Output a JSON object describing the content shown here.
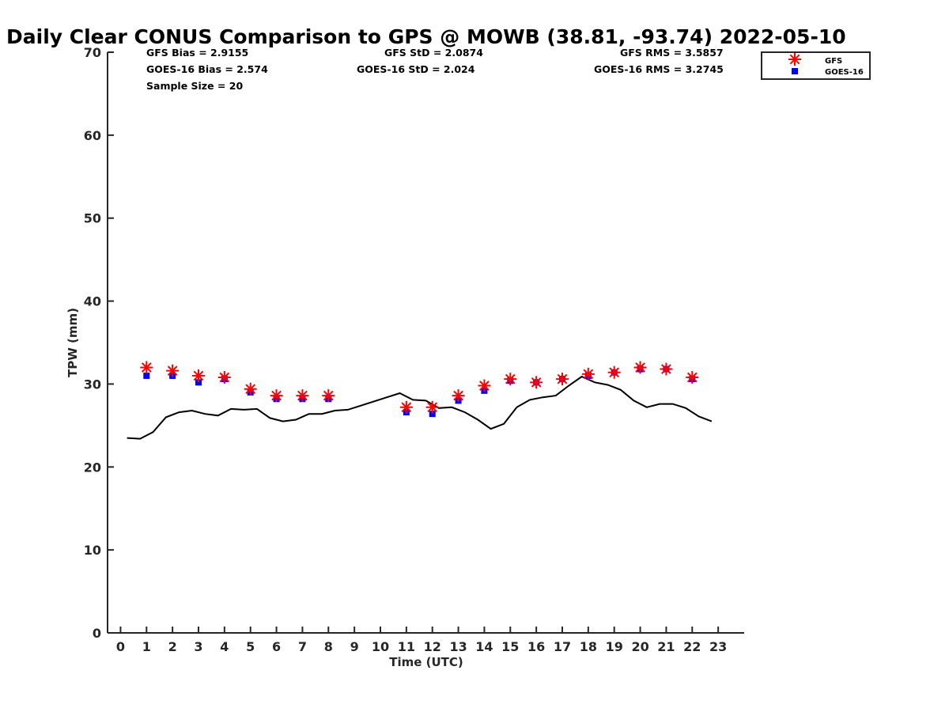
{
  "chart_data": {
    "type": "scatter",
    "title": "Daily Clear CONUS Comparison to GPS @ MOWB (38.81, -93.74) 2022-05-10",
    "xlabel": "Time (UTC)",
    "ylabel": "TPW (mm)",
    "xlim": [
      -0.5,
      24
    ],
    "ylim": [
      0,
      70
    ],
    "x_ticks": [
      0,
      1,
      2,
      3,
      4,
      5,
      6,
      7,
      8,
      9,
      10,
      11,
      12,
      13,
      14,
      15,
      16,
      17,
      18,
      19,
      20,
      21,
      22,
      23
    ],
    "y_ticks": [
      0,
      10,
      20,
      30,
      40,
      50,
      60,
      70
    ],
    "legend_position": "top-right",
    "grid": false,
    "stats": {
      "gfs_bias": "GFS Bias = 2.9155",
      "gfs_std": "GFS StD = 2.0874",
      "gfs_rms": "GFS RMS = 3.5857",
      "goes_bias": "GOES-16 Bias = 2.574",
      "goes_std": "GOES-16 StD = 2.024",
      "goes_rms": "GOES-16 RMS = 3.2745",
      "sample_size": "Sample Size = 20"
    },
    "series": [
      {
        "name": "GFS",
        "marker": "asterisk",
        "color": "#ff0000",
        "x": [
          1,
          2,
          3,
          4,
          5,
          6,
          7,
          8,
          11,
          12,
          13,
          14,
          15,
          16,
          17,
          18,
          19,
          20,
          21,
          22
        ],
        "y": [
          32.0,
          31.6,
          31.0,
          30.8,
          29.4,
          28.6,
          28.6,
          28.6,
          27.2,
          27.2,
          28.6,
          29.8,
          30.6,
          30.2,
          30.6,
          31.2,
          31.4,
          32.0,
          31.8,
          30.8
        ]
      },
      {
        "name": "GOES-16",
        "marker": "square",
        "color": "#0000ff",
        "x": [
          1,
          2,
          3,
          4,
          5,
          6,
          7,
          8,
          11,
          12,
          13,
          14,
          15,
          16,
          17,
          18,
          19,
          20,
          21,
          22
        ],
        "y": [
          31.0,
          31.0,
          30.2,
          30.6,
          29.0,
          28.2,
          28.2,
          28.2,
          26.6,
          26.4,
          28.0,
          29.2,
          30.4,
          30.2,
          30.6,
          31.0,
          31.4,
          31.8,
          31.8,
          30.6
        ]
      },
      {
        "marker": "line",
        "color": "#000000",
        "x": [
          0.25,
          0.75,
          1.25,
          1.75,
          2.25,
          2.75,
          3.25,
          3.75,
          4.25,
          4.75,
          5.25,
          5.75,
          6.25,
          6.75,
          7.25,
          7.75,
          8.25,
          8.75,
          9.25,
          9.75,
          10.25,
          10.75,
          11.25,
          11.75,
          12.25,
          12.75,
          13.25,
          13.75,
          14.25,
          14.75,
          15.25,
          15.75,
          16.25,
          16.75,
          17.25,
          17.75,
          18.25,
          18.75,
          19.25,
          19.75,
          20.25,
          20.75,
          21.25,
          21.75,
          22.25,
          22.75
        ],
        "y": [
          23.5,
          23.4,
          24.2,
          26.0,
          26.6,
          26.8,
          26.4,
          26.2,
          27.0,
          26.9,
          27.0,
          25.9,
          25.5,
          25.7,
          26.4,
          26.4,
          26.8,
          26.9,
          27.4,
          27.9,
          28.4,
          28.9,
          28.1,
          28.0,
          27.1,
          27.2,
          26.6,
          25.7,
          24.6,
          25.2,
          27.2,
          28.1,
          28.4,
          28.6,
          29.8,
          30.9,
          30.2,
          29.9,
          29.3,
          28.0,
          27.2,
          27.6,
          27.6,
          27.1,
          26.1,
          25.5
        ]
      }
    ]
  }
}
